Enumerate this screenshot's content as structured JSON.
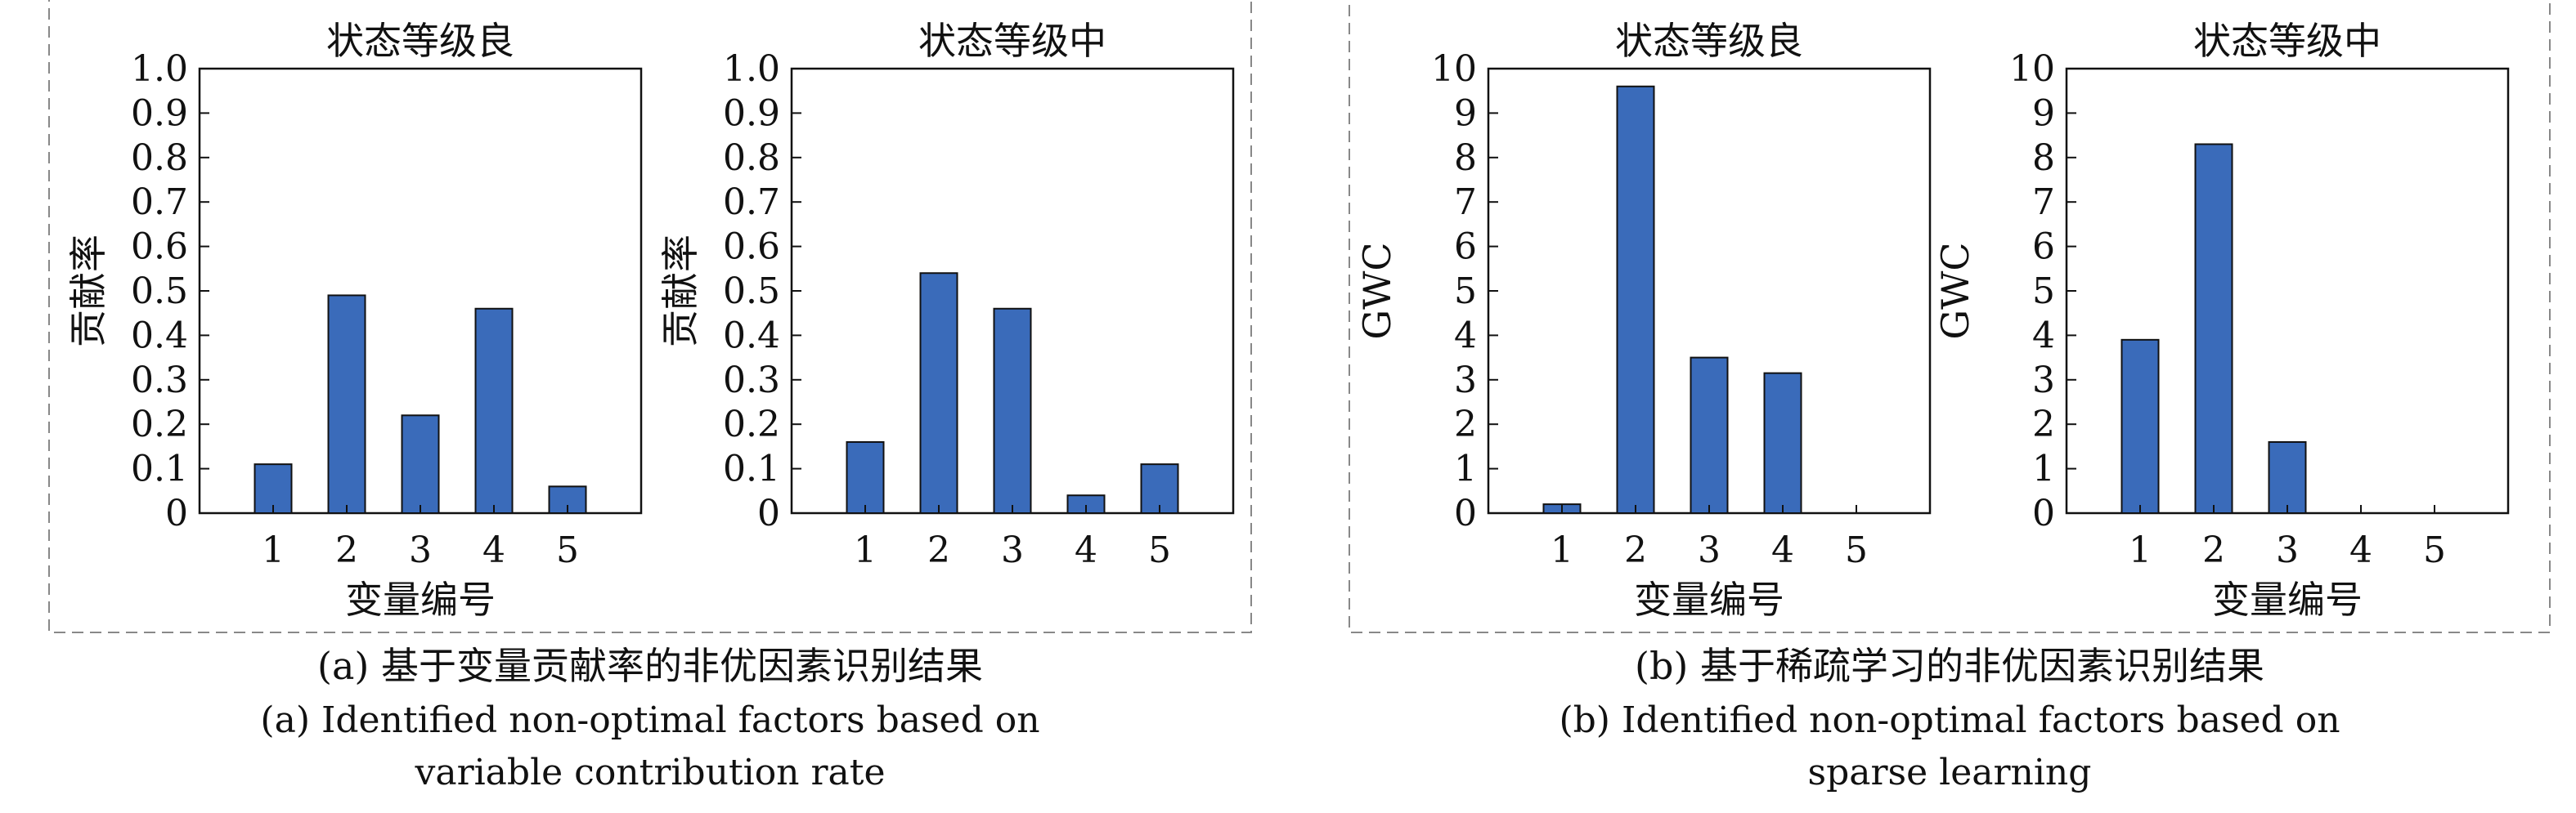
{
  "panels": [
    {
      "caption_cn": "(a) 基于变量贡献率的非优因素识别结果",
      "caption_en_1": "(a) Identified non-optimal factors based on",
      "caption_en_2": "variable contribution rate"
    },
    {
      "caption_cn": "(b) 基于稀疏学习的非优因素识别结果",
      "caption_en_1": "(b) Identified non-optimal factors based on",
      "caption_en_2": "sparse learning"
    }
  ],
  "colors": {
    "bar": "#3a6bba",
    "axis": "#111111",
    "frame": "#888888"
  },
  "chart_data": [
    {
      "type": "bar",
      "title": "状态等级良",
      "xlabel": "变量编号",
      "ylabel": "贡献率",
      "categories": [
        "1",
        "2",
        "3",
        "4",
        "5"
      ],
      "values": [
        0.11,
        0.49,
        0.22,
        0.46,
        0.06
      ],
      "ylim": [
        0,
        1.0
      ],
      "yticks": [
        "0",
        "0.1",
        "0.2",
        "0.3",
        "0.4",
        "0.5",
        "0.6",
        "0.7",
        "0.8",
        "0.9",
        "1.0"
      ]
    },
    {
      "type": "bar",
      "title": "状态等级中",
      "xlabel": "",
      "ylabel": "贡献率",
      "categories": [
        "1",
        "2",
        "3",
        "4",
        "5"
      ],
      "values": [
        0.16,
        0.54,
        0.46,
        0.04,
        0.11
      ],
      "ylim": [
        0,
        1.0
      ],
      "yticks": [
        "0",
        "0.1",
        "0.2",
        "0.3",
        "0.4",
        "0.5",
        "0.6",
        "0.7",
        "0.8",
        "0.9",
        "1.0"
      ]
    },
    {
      "type": "bar",
      "title": "状态等级良",
      "xlabel": "变量编号",
      "ylabel": "GWC",
      "categories": [
        "1",
        "2",
        "3",
        "4",
        "5"
      ],
      "values": [
        0.2,
        9.6,
        3.5,
        3.15,
        0
      ],
      "ylim": [
        0,
        10
      ],
      "yticks": [
        "0",
        "1",
        "2",
        "3",
        "4",
        "5",
        "6",
        "7",
        "8",
        "9",
        "10"
      ]
    },
    {
      "type": "bar",
      "title": "状态等级中",
      "xlabel": "变量编号",
      "ylabel": "GWC",
      "categories": [
        "1",
        "2",
        "3",
        "4",
        "5"
      ],
      "values": [
        3.9,
        8.3,
        1.6,
        0,
        0
      ],
      "ylim": [
        0,
        10
      ],
      "yticks": [
        "0",
        "1",
        "2",
        "3",
        "4",
        "5",
        "6",
        "7",
        "8",
        "9",
        "10"
      ]
    }
  ]
}
